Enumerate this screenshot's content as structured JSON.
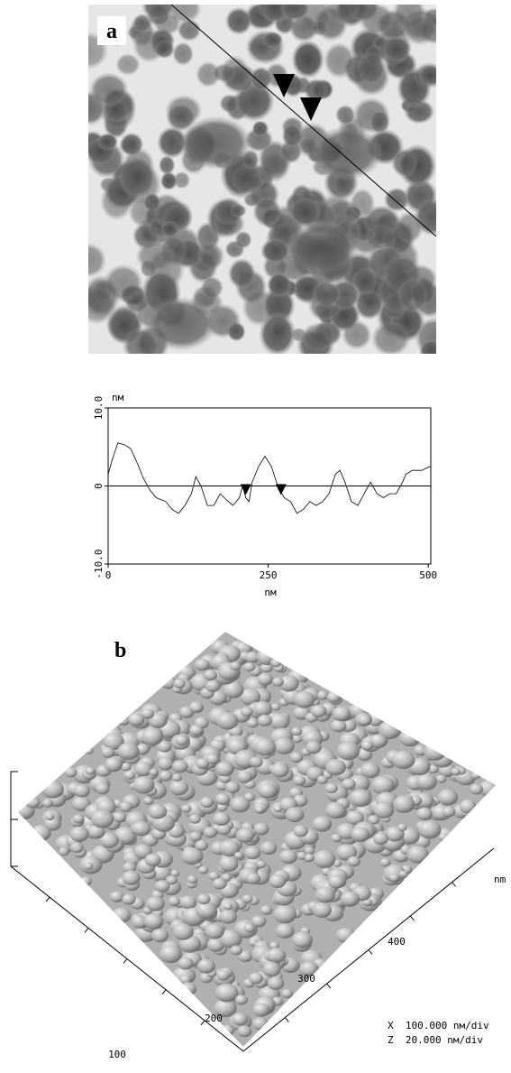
{
  "panel_a": {
    "label": "a"
  },
  "chart_data": {
    "type": "line",
    "y_unit": "nм",
    "x_unit": "nм",
    "xlim": [
      0,
      504
    ],
    "ylim": [
      -10,
      10
    ],
    "xticks": [
      0,
      250,
      500
    ],
    "yticks": [
      {
        "value": -10,
        "label": "-10.0"
      },
      0,
      {
        "value": 10,
        "label": "10.0"
      }
    ],
    "x": [
      0,
      5,
      15,
      25,
      35,
      45,
      55,
      65,
      75,
      90,
      100,
      110,
      120,
      130,
      137,
      145,
      155,
      165,
      175,
      185,
      195,
      205,
      210,
      215,
      220,
      225,
      235,
      245,
      255,
      265,
      275,
      285,
      295,
      305,
      315,
      325,
      335,
      345,
      355,
      362,
      370,
      380,
      390,
      400,
      410,
      420,
      430,
      440,
      450,
      460,
      465,
      475,
      490,
      503
    ],
    "values": [
      1.5,
      3,
      5.5,
      5.3,
      4.8,
      3,
      1,
      -0.5,
      -1.5,
      -2,
      -3,
      -3.5,
      -2.5,
      -1,
      1.2,
      0,
      -2.5,
      -2.5,
      -1,
      -1.8,
      -2.5,
      -1.5,
      0,
      -1.5,
      -2,
      0.5,
      2.5,
      3.8,
      2.5,
      0,
      -1.5,
      -2,
      -3.5,
      -3,
      -2,
      -2.5,
      -2,
      -1,
      1.5,
      2,
      0.5,
      -2,
      -2.5,
      -1,
      0.5,
      -1,
      -1.5,
      -1,
      -1,
      0.5,
      1.5,
      2,
      2,
      2.5
    ],
    "cursors": [
      215,
      270
    ]
  },
  "panel_b": {
    "label": "b",
    "axis_ticks": [
      100,
      200,
      300,
      400
    ],
    "axis_unit": "nm",
    "scale_x": "X  100.000 nм/div",
    "scale_z": "Z  20.000 nм/div"
  }
}
